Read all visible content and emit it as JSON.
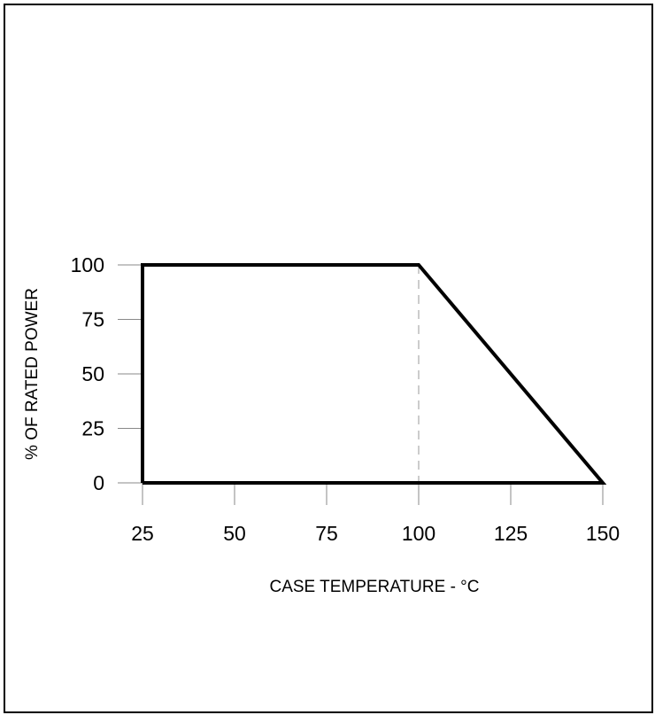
{
  "chart_data": {
    "type": "line",
    "title": "",
    "xlabel": "CASE TEMPERATURE - °C",
    "ylabel": "% OF RATED POWER",
    "xlim": [
      25,
      150
    ],
    "ylim": [
      0,
      100
    ],
    "x_ticks": [
      25,
      50,
      75,
      100,
      125,
      150
    ],
    "y_ticks": [
      0,
      25,
      50,
      75,
      100
    ],
    "x_tick_labels": [
      "25",
      "50",
      "75",
      "100",
      "125",
      "150"
    ],
    "y_tick_labels": [
      "0",
      "25",
      "50",
      "75",
      "100"
    ],
    "series": [
      {
        "x": [
          25,
          25,
          100,
          150,
          25
        ],
        "y": [
          0,
          100,
          100,
          0,
          0
        ]
      }
    ],
    "reference_lines": [
      {
        "orientation": "vertical",
        "x": 100,
        "from_y": 0,
        "to_y": 100,
        "style": "dashed"
      }
    ],
    "grid": false,
    "colors": {
      "line": "#000000",
      "axis": "#888888",
      "reference": "#9a9a9a"
    }
  }
}
